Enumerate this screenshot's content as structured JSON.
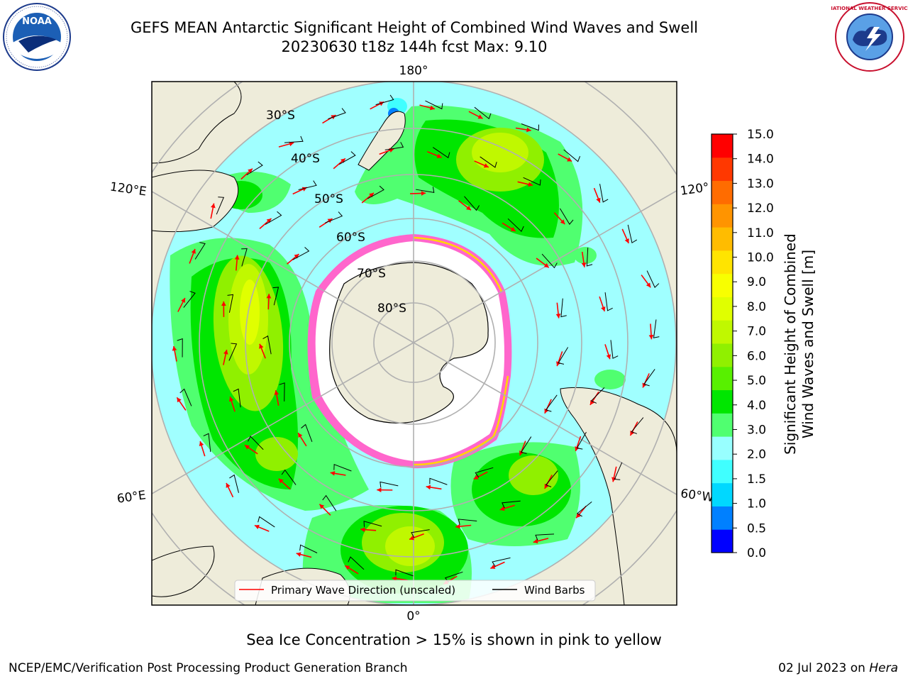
{
  "title": {
    "line1": "GEFS MEAN Antarctic Significant Height of Combined Wind Waves and Swell",
    "line2": "20230630 t18z 144h fcst   Max: 9.10"
  },
  "map": {
    "longitude_labels": [
      "180°",
      "120°E",
      "120°",
      "60°E",
      "60°W",
      "0°"
    ],
    "latitude_labels": [
      "30°S",
      "40°S",
      "50°S",
      "60°S",
      "70°S",
      "80°S"
    ],
    "legend": {
      "wave_direction": "Primary Wave Direction (unscaled)",
      "wind_barbs": "Wind Barbs",
      "wave_color": "#ff0000",
      "barb_color": "#000000"
    }
  },
  "colorbar": {
    "title_line1": "Significant Height of Combined",
    "title_line2": "Wind Waves and Swell [m]",
    "ticks": [
      "15.0",
      "14.0",
      "13.0",
      "12.0",
      "11.0",
      "10.0",
      "9.0",
      "8.0",
      "7.0",
      "6.0",
      "5.0",
      "4.0",
      "3.0",
      "2.0",
      "1.5",
      "1.0",
      "0.5",
      "0.0"
    ],
    "colors": [
      "#0000ff",
      "#0080ff",
      "#00d8ff",
      "#40ffff",
      "#98ffff",
      "#50ff70",
      "#00e600",
      "#58f000",
      "#90f000",
      "#c0f800",
      "#e0ff00",
      "#f8ff00",
      "#ffe400",
      "#ffbc00",
      "#ff9400",
      "#ff6c00",
      "#ff3800",
      "#ff0000"
    ]
  },
  "caption": "Sea Ice Concentration > 15% is shown in pink to yellow",
  "footer": {
    "left": "NCEP/EMC/Verification Post Processing Product Generation Branch",
    "right_date": "02 Jul 2023 on ",
    "right_host": "Hera"
  },
  "logos": {
    "left": "NOAA",
    "right": "NATIONAL WEATHER SERVICE"
  }
}
